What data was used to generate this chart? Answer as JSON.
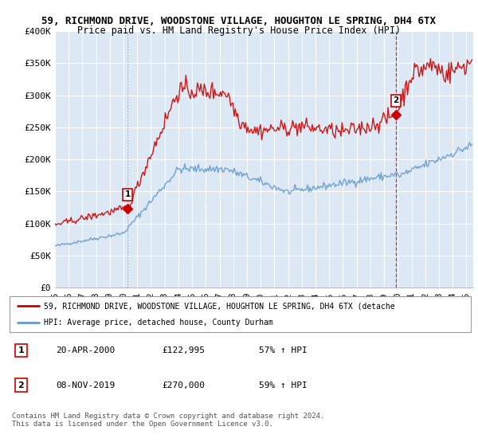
{
  "title_line1": "59, RICHMOND DRIVE, WOODSTONE VILLAGE, HOUGHTON LE SPRING, DH4 6TX",
  "title_line2": "Price paid vs. HM Land Registry's House Price Index (HPI)",
  "ylabel_ticks": [
    "£0",
    "£50K",
    "£100K",
    "£150K",
    "£200K",
    "£250K",
    "£300K",
    "£350K",
    "£400K"
  ],
  "ylim": [
    0,
    400000
  ],
  "xlim_start": 1995.0,
  "xlim_end": 2025.5,
  "xtick_years": [
    1995,
    1996,
    1997,
    1998,
    1999,
    2000,
    2001,
    2002,
    2003,
    2004,
    2005,
    2006,
    2007,
    2008,
    2009,
    2010,
    2011,
    2012,
    2013,
    2014,
    2015,
    2016,
    2017,
    2018,
    2019,
    2020,
    2021,
    2022,
    2023,
    2024,
    2025
  ],
  "xtick_labels": [
    "95",
    "96",
    "97",
    "98",
    "99",
    "00",
    "01",
    "02",
    "03",
    "04",
    "05",
    "06",
    "07",
    "08",
    "09",
    "10",
    "11",
    "12",
    "13",
    "14",
    "15",
    "16",
    "17",
    "18",
    "19",
    "20",
    "21",
    "22",
    "23",
    "24",
    "25"
  ],
  "sale1_x": 2000.3,
  "sale1_y": 122995,
  "sale1_label": "1",
  "sale2_x": 2019.85,
  "sale2_y": 270000,
  "sale2_label": "2",
  "vline1_x": 2000.3,
  "vline2_x": 2019.85,
  "hpi_color": "#6699cc",
  "price_color": "#cc0000",
  "chart_bg_color": "#dce9f5",
  "background_color": "#ffffff",
  "grid_color": "#ffffff",
  "legend_line1": "59, RICHMOND DRIVE, WOODSTONE VILLAGE, HOUGHTON LE SPRING, DH4 6TX (detache",
  "legend_line2": "HPI: Average price, detached house, County Durham",
  "annotation1_date": "20-APR-2000",
  "annotation1_price": "£122,995",
  "annotation1_hpi": "57% ↑ HPI",
  "annotation2_date": "08-NOV-2019",
  "annotation2_price": "£270,000",
  "annotation2_hpi": "59% ↑ HPI",
  "footer": "Contains HM Land Registry data © Crown copyright and database right 2024.\nThis data is licensed under the Open Government Licence v3.0."
}
